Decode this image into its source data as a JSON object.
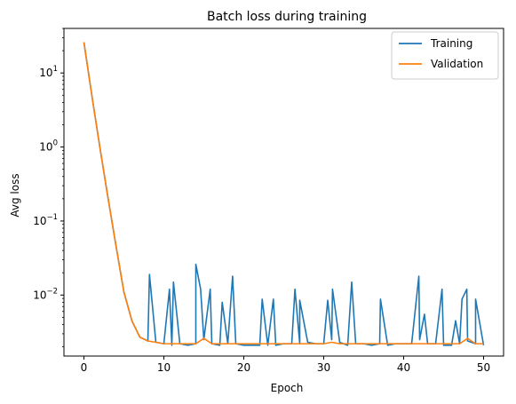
{
  "chart_data": {
    "type": "line",
    "title": "Batch loss during training",
    "xlabel": "Epoch",
    "ylabel": "Avg loss",
    "xlim": [
      -2.5,
      52.5
    ],
    "ylim": [
      0.0015,
      40
    ],
    "yscale": "log",
    "grid": false,
    "legend_position": "top-right",
    "x_ticks": [
      0,
      10,
      20,
      30,
      40,
      50
    ],
    "x_tick_labels": [
      "0",
      "10",
      "20",
      "30",
      "40",
      "50"
    ],
    "y_ticks": [
      0.01,
      0.1,
      1,
      10
    ],
    "y_tick_labels": [
      {
        "base": "10",
        "exp": "−2"
      },
      {
        "base": "10",
        "exp": "−1"
      },
      {
        "base": "10",
        "exp": "0"
      },
      {
        "base": "10",
        "exp": "1"
      }
    ],
    "series": [
      {
        "name": "Training",
        "color": "#1f77b4",
        "x": [
          0,
          1,
          2,
          3,
          4,
          5,
          6,
          7,
          8,
          9,
          10,
          11,
          12,
          13,
          14,
          15,
          16,
          17,
          18,
          19,
          20,
          21,
          22,
          23,
          24,
          25,
          26,
          27,
          28,
          29,
          30,
          31,
          32,
          33,
          34,
          35,
          36,
          37,
          38,
          39,
          40,
          41,
          42,
          43,
          44,
          45,
          46,
          47,
          48,
          49,
          50
        ],
        "values": [
          26,
          4.9,
          0.98,
          0.21,
          0.047,
          0.011,
          0.0045,
          0.0027,
          0.0024,
          0.0023,
          0.0022,
          0.0021,
          0.0022,
          0.0021,
          0.0022,
          0.0025,
          0.0022,
          0.0021,
          0.0022,
          0.0022,
          0.0021,
          0.0021,
          0.0021,
          0.0021,
          0.0021,
          0.0022,
          0.0022,
          0.0022,
          0.0023,
          0.0022,
          0.0022,
          0.0025,
          0.0023,
          0.0021,
          0.0022,
          0.0022,
          0.0021,
          0.0022,
          0.0021,
          0.0022,
          0.0022,
          0.0022,
          0.0025,
          0.0022,
          0.0022,
          0.0021,
          0.0021,
          0.0022,
          0.0024,
          0.0022,
          0.0021
        ]
      },
      {
        "name": "Validation",
        "color": "#ff7f0e",
        "x": [
          0,
          1,
          2,
          3,
          4,
          5,
          6,
          7,
          8,
          9,
          10,
          11,
          12,
          13,
          14,
          15,
          16,
          17,
          18,
          19,
          20,
          21,
          22,
          23,
          24,
          25,
          26,
          27,
          28,
          29,
          30,
          31,
          32,
          33,
          34,
          35,
          36,
          37,
          38,
          39,
          40,
          41,
          42,
          43,
          44,
          45,
          46,
          47,
          48,
          49,
          50
        ],
        "values": [
          26,
          4.9,
          0.98,
          0.21,
          0.047,
          0.011,
          0.0045,
          0.0027,
          0.0024,
          0.0023,
          0.0022,
          0.0022,
          0.0022,
          0.0022,
          0.0022,
          0.0026,
          0.0022,
          0.0022,
          0.0022,
          0.0022,
          0.0022,
          0.0022,
          0.0022,
          0.0022,
          0.0022,
          0.0022,
          0.0022,
          0.0022,
          0.0022,
          0.0022,
          0.0022,
          0.0023,
          0.0022,
          0.0022,
          0.0022,
          0.0022,
          0.0022,
          0.0022,
          0.0022,
          0.0022,
          0.0022,
          0.0022,
          0.0022,
          0.0022,
          0.0022,
          0.0022,
          0.0022,
          0.0022,
          0.0026,
          0.0022,
          0.0022
        ]
      }
    ],
    "training_spikes": [
      {
        "x": 8.2,
        "y": 0.019
      },
      {
        "x": 10.7,
        "y": 0.012
      },
      {
        "x": 11.2,
        "y": 0.015
      },
      {
        "x": 14.0,
        "y": 0.026
      },
      {
        "x": 14.6,
        "y": 0.012
      },
      {
        "x": 15.8,
        "y": 0.012
      },
      {
        "x": 17.3,
        "y": 0.008
      },
      {
        "x": 18.6,
        "y": 0.018
      },
      {
        "x": 22.3,
        "y": 0.0088
      },
      {
        "x": 23.7,
        "y": 0.0088
      },
      {
        "x": 26.4,
        "y": 0.012
      },
      {
        "x": 27.0,
        "y": 0.0085
      },
      {
        "x": 30.5,
        "y": 0.0085
      },
      {
        "x": 31.1,
        "y": 0.012
      },
      {
        "x": 33.5,
        "y": 0.015
      },
      {
        "x": 37.1,
        "y": 0.0088
      },
      {
        "x": 41.9,
        "y": 0.018
      },
      {
        "x": 42.6,
        "y": 0.0055
      },
      {
        "x": 44.8,
        "y": 0.012
      },
      {
        "x": 46.5,
        "y": 0.0045
      },
      {
        "x": 47.3,
        "y": 0.0088
      },
      {
        "x": 47.9,
        "y": 0.012
      },
      {
        "x": 49.0,
        "y": 0.0088
      }
    ]
  }
}
